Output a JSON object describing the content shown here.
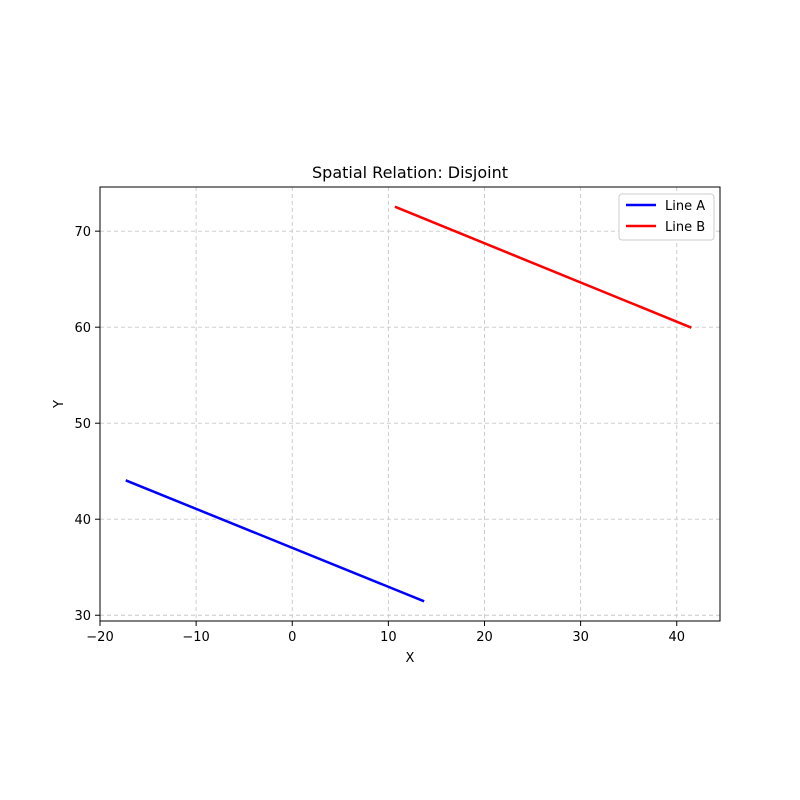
{
  "chart_data": {
    "type": "line",
    "title": "Spatial Relation: Disjoint",
    "xlabel": "X",
    "ylabel": "Y",
    "xlim": [
      -20,
      44.5
    ],
    "ylim": [
      29.4,
      74.6
    ],
    "xticks": [
      -20,
      -10,
      0,
      10,
      20,
      30,
      40
    ],
    "yticks": [
      30,
      40,
      50,
      60,
      70
    ],
    "xtick_labels": [
      "−20",
      "−10",
      "0",
      "10",
      "20",
      "30",
      "40"
    ],
    "ytick_labels": [
      "30",
      "40",
      "50",
      "60",
      "70"
    ],
    "grid": true,
    "legend_position": "top-right",
    "series": [
      {
        "name": "Line A",
        "color": "#0000ff",
        "x": [
          -17.2,
          13.6
        ],
        "y": [
          44.0,
          31.5
        ]
      },
      {
        "name": "Line B",
        "color": "#ff0000",
        "x": [
          10.8,
          41.4
        ],
        "y": [
          72.5,
          60.0
        ]
      }
    ]
  }
}
